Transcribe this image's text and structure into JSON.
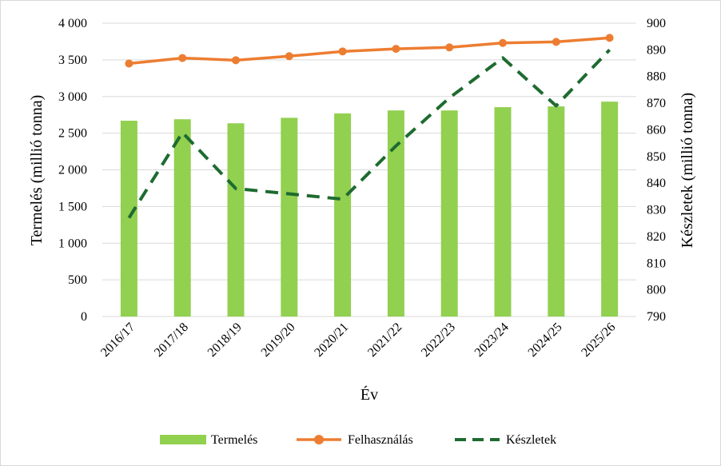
{
  "chart_data": {
    "type": "bar",
    "categories": [
      "2016/17",
      "2017/18",
      "2018/19",
      "2019/20",
      "2020/21",
      "2021/22",
      "2022/23",
      "2023/24",
      "2024/25",
      "2025/26"
    ],
    "series": [
      {
        "name": "Termelés",
        "type": "bar",
        "axis": "left",
        "color": "#92d050",
        "values": [
          2670,
          2690,
          2635,
          2710,
          2770,
          2810,
          2810,
          2855,
          2865,
          2930
        ]
      },
      {
        "name": "Felhasználás",
        "type": "line",
        "axis": "left",
        "color": "#ed7d31",
        "marker": "circle",
        "values": [
          3450,
          3525,
          3495,
          3550,
          3615,
          3650,
          3670,
          3730,
          3745,
          3800
        ]
      },
      {
        "name": "Készletek",
        "type": "line",
        "axis": "right",
        "color": "#1e6b30",
        "dash": "dashed",
        "values": [
          827,
          859,
          838,
          836,
          834,
          854,
          872,
          887,
          869,
          890
        ]
      }
    ],
    "xlabel": "Év",
    "ylabel": "Termelés (millió tonna)",
    "ylabel_right": "Készletek (millió tonna)",
    "ylim": [
      0,
      4000
    ],
    "ylim_right": [
      790,
      900
    ],
    "yticks": [
      "0",
      "500",
      "1 000",
      "1 500",
      "2 000",
      "2 500",
      "3 000",
      "3 500",
      "4 000"
    ],
    "yticks_right": [
      "790",
      "800",
      "810",
      "820",
      "830",
      "840",
      "850",
      "860",
      "870",
      "880",
      "890",
      "900"
    ],
    "grid": true,
    "legend": "bottom"
  }
}
